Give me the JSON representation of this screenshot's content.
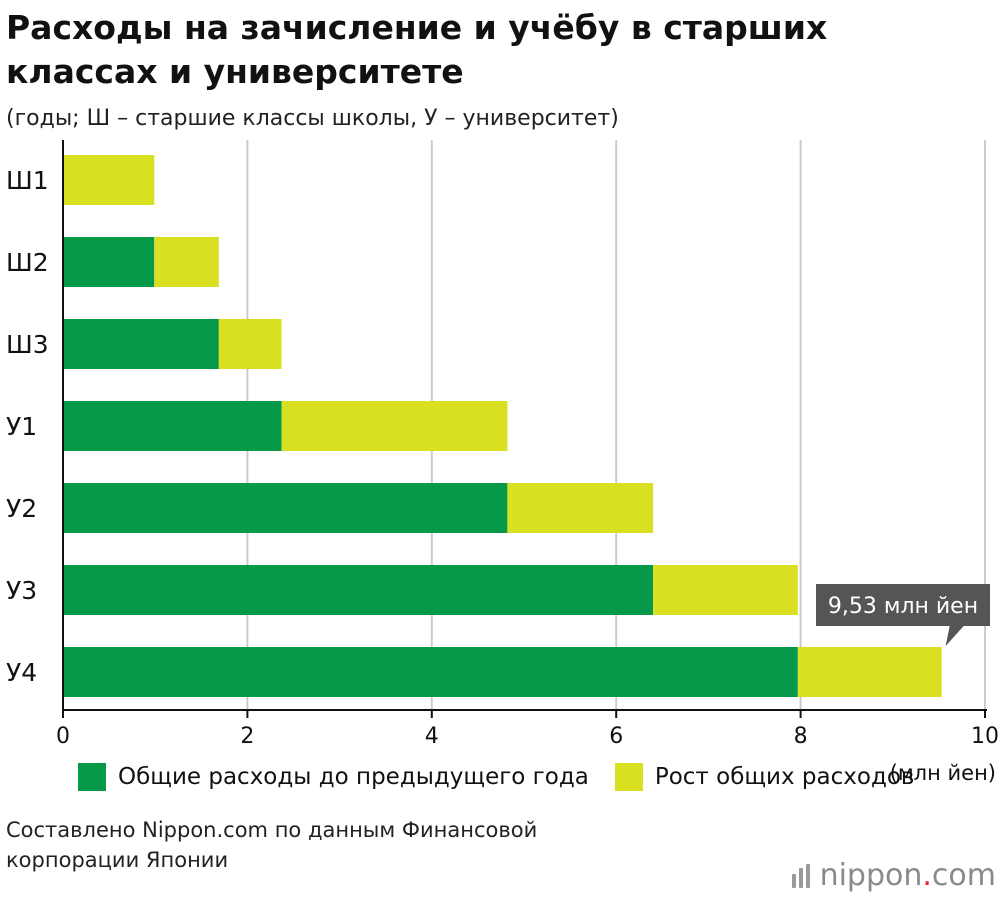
{
  "title": "Расходы на зачисление и учёбу в старших классах и университете",
  "subtitle": "(годы; Ш – старшие классы школы, У – университет)",
  "unit_label": "(млн йен)",
  "callout": "9,53 млн йен",
  "legend": {
    "prev": "Общие расходы до предыдущего года",
    "growth": "Рост общих расходов"
  },
  "source": {
    "line1": "Составлено Nippon.com по данным Финансовой",
    "line2": "корпорации Японии"
  },
  "logo": {
    "name": "nippon",
    "dot": ".",
    "domain": "com"
  },
  "colors": {
    "prev": "#06994a",
    "growth": "#d8e021",
    "grid": "#cccccc",
    "callout_bg": "#555555"
  },
  "chart_data": {
    "type": "bar",
    "orientation": "horizontal",
    "stacked": true,
    "categories": [
      "Ш1",
      "Ш2",
      "Ш3",
      "У1",
      "У2",
      "У3",
      "У4"
    ],
    "series": [
      {
        "name": "Общие расходы до предыдущего года",
        "values": [
          0,
          0.99,
          1.69,
          2.37,
          4.82,
          6.4,
          7.97
        ]
      },
      {
        "name": "Рост общих расходов",
        "values": [
          0.99,
          0.7,
          0.68,
          2.45,
          1.58,
          1.57,
          1.56
        ]
      }
    ],
    "xlim": [
      0,
      10
    ],
    "xticks": [
      0,
      2,
      4,
      6,
      8,
      10
    ],
    "xlabel": "(млн йен)",
    "grid": true,
    "legend_position": "bottom",
    "annotations": [
      "9,53 млн йен"
    ]
  }
}
